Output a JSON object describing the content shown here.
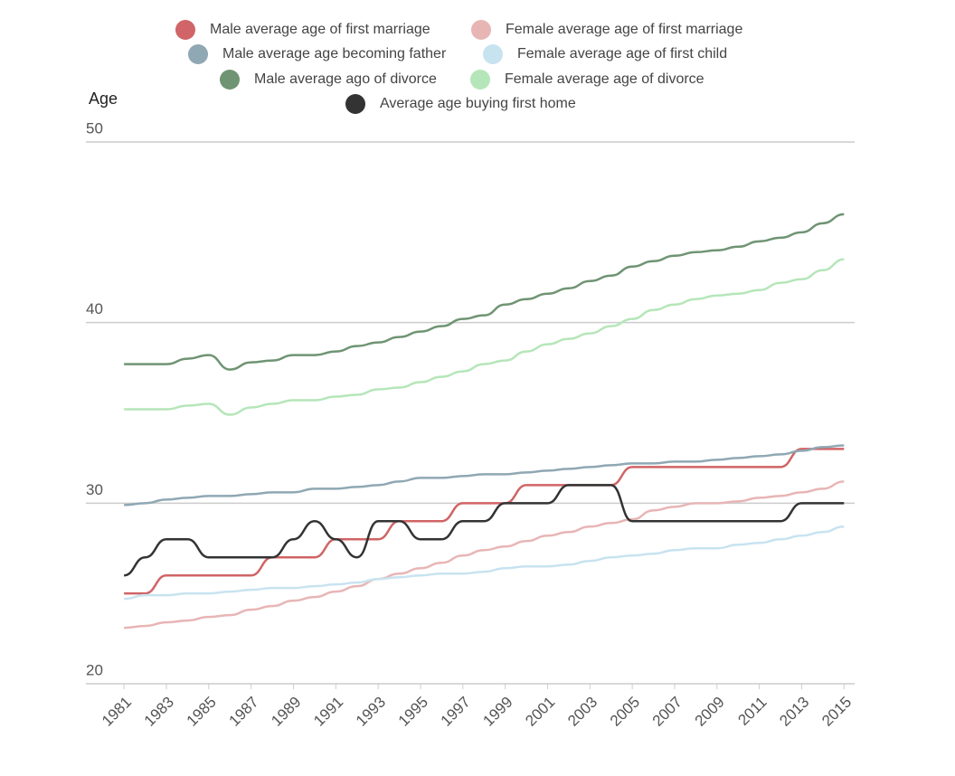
{
  "chart_data": {
    "type": "line",
    "y_label": "Age",
    "x": [
      1981,
      1982,
      1983,
      1984,
      1985,
      1986,
      1987,
      1988,
      1989,
      1990,
      1991,
      1992,
      1993,
      1994,
      1995,
      1996,
      1997,
      1998,
      1999,
      2000,
      2001,
      2002,
      2003,
      2004,
      2005,
      2006,
      2007,
      2008,
      2009,
      2010,
      2011,
      2012,
      2013,
      2014,
      2015
    ],
    "xlim": [
      1979.2,
      2015.5
    ],
    "xticks": [
      1981,
      1983,
      1985,
      1987,
      1989,
      1991,
      1993,
      1995,
      1997,
      1999,
      2001,
      2003,
      2005,
      2007,
      2009,
      2011,
      2013,
      2015
    ],
    "ylim": [
      20,
      50
    ],
    "yticks": [
      20,
      30,
      40,
      50
    ],
    "grid": true,
    "series": [
      {
        "name": "Male average age of first marriage",
        "color": "#d06466",
        "values": [
          25,
          25,
          26,
          26,
          26,
          26,
          26,
          27,
          27,
          27,
          28,
          28,
          28,
          29,
          29,
          29,
          30,
          30,
          30,
          31,
          31,
          31,
          31,
          31,
          32,
          32,
          32,
          32,
          32,
          32,
          32,
          32,
          33,
          33,
          33
        ]
      },
      {
        "name": "Female average age of first marriage",
        "color": "#e8b5b5",
        "values": [
          23.1,
          23.2,
          23.4,
          23.5,
          23.7,
          23.8,
          24.1,
          24.3,
          24.6,
          24.8,
          25.1,
          25.4,
          25.8,
          26.1,
          26.4,
          26.7,
          27.1,
          27.4,
          27.6,
          27.9,
          28.2,
          28.4,
          28.7,
          28.9,
          29.1,
          29.6,
          29.8,
          30.0,
          30.0,
          30.1,
          30.3,
          30.4,
          30.6,
          30.8,
          31.2
        ]
      },
      {
        "name": "Male average age becoming father",
        "color": "#8fa8b3",
        "values": [
          29.9,
          30.0,
          30.2,
          30.3,
          30.4,
          30.4,
          30.5,
          30.6,
          30.6,
          30.8,
          30.8,
          30.9,
          31.0,
          31.2,
          31.4,
          31.4,
          31.5,
          31.6,
          31.6,
          31.7,
          31.8,
          31.9,
          32.0,
          32.1,
          32.2,
          32.2,
          32.3,
          32.3,
          32.4,
          32.5,
          32.6,
          32.7,
          32.9,
          33.1,
          33.2
        ]
      },
      {
        "name": "Female average age of first child",
        "color": "#c8e3f0",
        "values": [
          24.7,
          24.9,
          24.9,
          25.0,
          25.0,
          25.1,
          25.2,
          25.3,
          25.3,
          25.4,
          25.5,
          25.6,
          25.8,
          25.9,
          26.0,
          26.1,
          26.1,
          26.2,
          26.4,
          26.5,
          26.5,
          26.6,
          26.8,
          27.0,
          27.1,
          27.2,
          27.4,
          27.5,
          27.5,
          27.7,
          27.8,
          28.0,
          28.2,
          28.4,
          28.7
        ]
      },
      {
        "name": "Male average ago of divorce",
        "color": "#6f9473",
        "values": [
          37.7,
          37.7,
          37.7,
          38.0,
          38.2,
          37.4,
          37.8,
          37.9,
          38.2,
          38.2,
          38.4,
          38.7,
          38.9,
          39.2,
          39.5,
          39.8,
          40.2,
          40.4,
          41.0,
          41.3,
          41.6,
          41.9,
          42.3,
          42.6,
          43.1,
          43.4,
          43.7,
          43.9,
          44.0,
          44.2,
          44.5,
          44.7,
          45.0,
          45.5,
          46.0
        ]
      },
      {
        "name": "Female average age of divorce",
        "color": "#b5e6b9",
        "values": [
          35.2,
          35.2,
          35.2,
          35.4,
          35.5,
          34.9,
          35.3,
          35.5,
          35.7,
          35.7,
          35.9,
          36.0,
          36.3,
          36.4,
          36.7,
          37.0,
          37.3,
          37.7,
          37.9,
          38.4,
          38.8,
          39.1,
          39.4,
          39.8,
          40.2,
          40.7,
          41.0,
          41.3,
          41.5,
          41.6,
          41.8,
          42.2,
          42.4,
          42.9,
          43.5
        ]
      },
      {
        "name": "Average age buying first home",
        "color": "#333333",
        "values": [
          26,
          27,
          28,
          28,
          27,
          27,
          27,
          27,
          28,
          29,
          28,
          27,
          29,
          29,
          28,
          28,
          29,
          29,
          30,
          30,
          30,
          31,
          31,
          31,
          29,
          29,
          29,
          29,
          29,
          29,
          29,
          29,
          30,
          30,
          30
        ]
      }
    ]
  }
}
